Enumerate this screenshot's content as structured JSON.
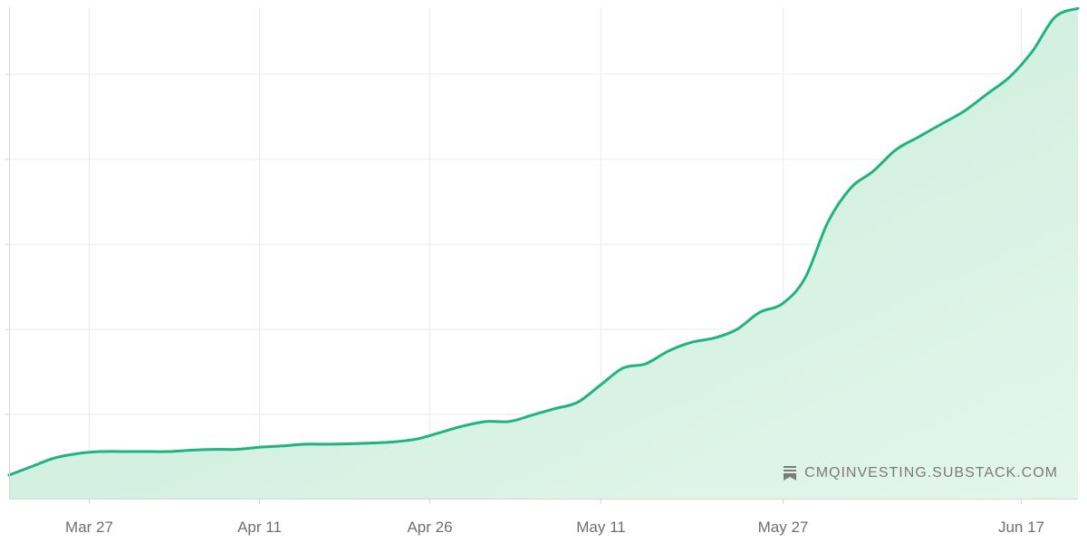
{
  "chart_data": {
    "type": "area",
    "x_axis_type": "date",
    "x_ticks": [
      "Mar 27",
      "Apr 11",
      "Apr 26",
      "May 11",
      "May 27",
      "Jun 17"
    ],
    "y_ticks_labeled": false,
    "grid": true,
    "legend": "none",
    "colors": {
      "line": "#1fb37f",
      "fill": "#d4efe1",
      "grid": "#ebebeb",
      "axis": "#d6d6d6"
    },
    "x": [
      "Mar 20",
      "Mar 22",
      "Mar 24",
      "Mar 26",
      "Mar 28",
      "Mar 30",
      "Apr 1",
      "Apr 3",
      "Apr 5",
      "Apr 7",
      "Apr 9",
      "Apr 11",
      "Apr 13",
      "Apr 15",
      "Apr 17",
      "Apr 19",
      "Apr 21",
      "Apr 23",
      "Apr 25",
      "Apr 27",
      "Apr 29",
      "May 1",
      "May 3",
      "May 5",
      "May 7",
      "May 9",
      "May 11",
      "May 13",
      "May 15",
      "May 17",
      "May 19",
      "May 21",
      "May 23",
      "May 25",
      "May 27",
      "May 29",
      "May 31",
      "Jun 2",
      "Jun 4",
      "Jun 6",
      "Jun 8",
      "Jun 10",
      "Jun 12",
      "Jun 14",
      "Jun 16",
      "Jun 18",
      "Jun 20",
      "Jun 22"
    ],
    "y": [
      0.4,
      0.6,
      0.8,
      0.9,
      0.95,
      0.95,
      0.95,
      0.95,
      0.98,
      1.0,
      1.0,
      1.05,
      1.08,
      1.12,
      1.12,
      1.13,
      1.15,
      1.18,
      1.25,
      1.4,
      1.55,
      1.65,
      1.65,
      1.8,
      1.95,
      2.1,
      2.5,
      2.9,
      3.0,
      3.3,
      3.5,
      3.6,
      3.8,
      4.2,
      4.4,
      5.0,
      6.3,
      7.1,
      7.5,
      8.0,
      8.3,
      8.6,
      8.9,
      9.3,
      9.7,
      10.3,
      11.1,
      11.3
    ],
    "ylim": [
      -0.15,
      11.2
    ]
  },
  "watermark": {
    "icon": "substack-icon",
    "text": "CMQINVESTING.SUBSTACK.COM"
  }
}
